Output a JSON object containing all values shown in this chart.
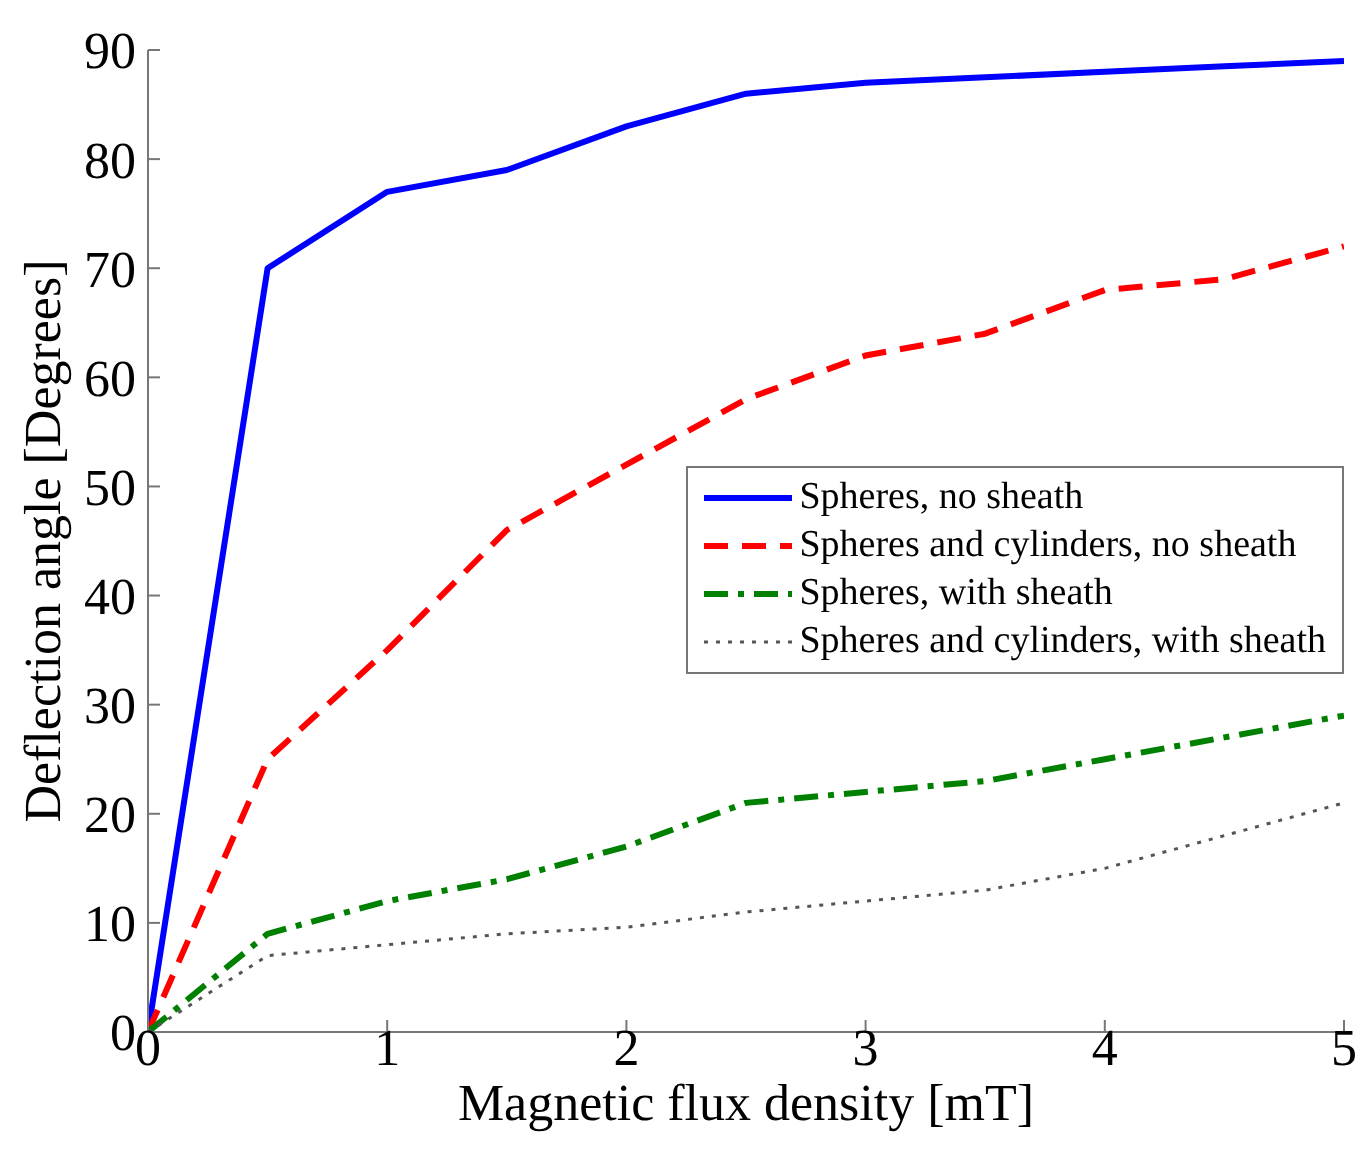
{
  "chart_data": {
    "type": "line",
    "xlabel": "Magnetic flux density [mT]",
    "ylabel": "Deflection angle [Degrees]",
    "x": [
      0,
      0.5,
      1,
      1.5,
      2,
      2.5,
      3,
      3.5,
      4,
      4.5,
      5
    ],
    "xlim": [
      0,
      5
    ],
    "xticks": [
      0,
      1,
      2,
      3,
      4,
      5
    ],
    "ylim": [
      0,
      90
    ],
    "yticks": [
      0,
      10,
      20,
      30,
      40,
      50,
      60,
      70,
      80,
      90
    ],
    "grid": false,
    "legend": "right",
    "marker": "none",
    "series": [
      {
        "name": "Spheres, no sheath",
        "color": "#0000ff",
        "line_style": "solid",
        "values": [
          0,
          70,
          77,
          79,
          83,
          86,
          87,
          87.5,
          88,
          88.5,
          89
        ]
      },
      {
        "name": "Spheres and cylinders, no sheath",
        "color": "#ff0000",
        "line_style": "dashed",
        "values": [
          0,
          25,
          35,
          46,
          52,
          58,
          62,
          64,
          68,
          69,
          72
        ]
      },
      {
        "name": "Spheres, with sheath",
        "color": "#008000",
        "line_style": "dashdot",
        "values": [
          0,
          9,
          12,
          14,
          17,
          21,
          22,
          23,
          25,
          27,
          29
        ]
      },
      {
        "name": "Spheres and cylinders, with sheath",
        "color": "#555555",
        "line_style": "dotted",
        "values": [
          0,
          7,
          8,
          9,
          9.6,
          11,
          12,
          13,
          15,
          18,
          21
        ]
      }
    ]
  }
}
